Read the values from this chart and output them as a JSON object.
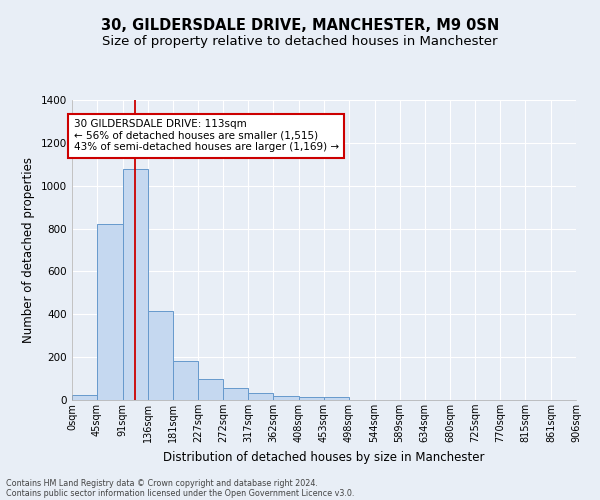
{
  "title1": "30, GILDERSDALE DRIVE, MANCHESTER, M9 0SN",
  "title2": "Size of property relative to detached houses in Manchester",
  "xlabel": "Distribution of detached houses by size in Manchester",
  "ylabel": "Number of detached properties",
  "bar_values": [
    25,
    820,
    1080,
    415,
    183,
    100,
    57,
    35,
    20,
    13,
    12,
    0,
    0,
    0,
    0,
    0,
    0,
    0,
    0,
    0
  ],
  "bin_edges": [
    0,
    45,
    91,
    136,
    181,
    227,
    272,
    317,
    362,
    408,
    453,
    498,
    544,
    589,
    634,
    680,
    725,
    770,
    815,
    861,
    906
  ],
  "x_labels": [
    "0sqm",
    "45sqm",
    "91sqm",
    "136sqm",
    "181sqm",
    "227sqm",
    "272sqm",
    "317sqm",
    "362sqm",
    "408sqm",
    "453sqm",
    "498sqm",
    "544sqm",
    "589sqm",
    "634sqm",
    "680sqm",
    "725sqm",
    "770sqm",
    "815sqm",
    "861sqm",
    "906sqm"
  ],
  "bar_color": "#c5d8f0",
  "bar_edge_color": "#6699cc",
  "ylim": [
    0,
    1400
  ],
  "yticks": [
    0,
    200,
    400,
    600,
    800,
    1000,
    1200,
    1400
  ],
  "red_line_x": 113,
  "annotation_line1": "30 GILDERSDALE DRIVE: 113sqm",
  "annotation_line2": "← 56% of detached houses are smaller (1,515)",
  "annotation_line3": "43% of semi-detached houses are larger (1,169) →",
  "annotation_box_color": "#ffffff",
  "annotation_border_color": "#cc0000",
  "footer1": "Contains HM Land Registry data © Crown copyright and database right 2024.",
  "footer2": "Contains public sector information licensed under the Open Government Licence v3.0.",
  "bg_color": "#e8eef6",
  "grid_color": "#ffffff",
  "title1_fontsize": 10.5,
  "title2_fontsize": 9.5,
  "xlabel_fontsize": 8.5,
  "ylabel_fontsize": 8.5,
  "annotation_fontsize": 7.5,
  "footer_fontsize": 5.8,
  "tick_fontsize": 7
}
